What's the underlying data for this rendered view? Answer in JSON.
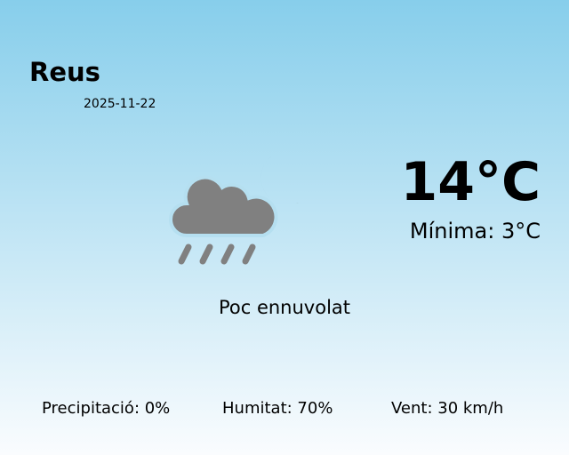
{
  "city": "Reus",
  "date": "2025-11-22",
  "temperature": "14°C",
  "minimum": "Mínima: 3°C",
  "description": "Poc ennuvolat",
  "icon": "cloud-rain-moon-icon",
  "icon_color": "#808080",
  "stats": {
    "precipitation": "Precipitació: 0%",
    "humidity": "Humitat: 70%",
    "wind": "Vent: 30 km/h"
  }
}
